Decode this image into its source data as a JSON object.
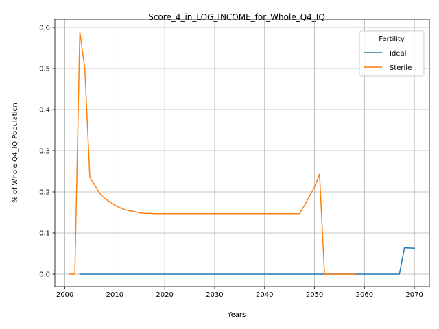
{
  "chart_data": {
    "type": "line",
    "title": "Score_4_in_LOG_INCOME_for_Whole_Q4_IQ",
    "xlabel": "Years",
    "ylabel": "% of Whole Q4_IQ Population",
    "xlim": [
      1998,
      2073
    ],
    "ylim": [
      -0.03,
      0.62
    ],
    "xticks": [
      2000,
      2010,
      2020,
      2030,
      2040,
      2050,
      2060,
      2070
    ],
    "yticks": [
      0.0,
      0.1,
      0.2,
      0.3,
      0.4,
      0.5,
      0.6
    ],
    "ytick_labels": [
      "0.0",
      "0.1",
      "0.2",
      "0.3",
      "0.4",
      "0.5",
      "0.6"
    ],
    "grid": true,
    "legend": {
      "title": "Fertility",
      "placement": "top-right"
    },
    "series": [
      {
        "name": "Ideal",
        "color": "#1f77b4",
        "x": [
          2003,
          2010,
          2020,
          2030,
          2040,
          2050,
          2060,
          2067,
          2068,
          2070
        ],
        "y": [
          0.0,
          0.0,
          0.0,
          0.0,
          0.0,
          0.0,
          0.0,
          0.0,
          0.064,
          0.063
        ]
      },
      {
        "name": "Sterile",
        "color": "#ff7f0e",
        "x": [
          2001,
          2002,
          2003,
          2004,
          2005,
          2006,
          2007,
          2008,
          2009,
          2010,
          2011,
          2012,
          2013,
          2014,
          2015,
          2016,
          2017,
          2018,
          2020,
          2025,
          2030,
          2035,
          2040,
          2045,
          2047,
          2048,
          2049,
          2050,
          2051,
          2052,
          2053,
          2055,
          2058
        ],
        "y": [
          0.0,
          0.0,
          0.589,
          0.5,
          0.236,
          0.216,
          0.196,
          0.184,
          0.176,
          0.168,
          0.162,
          0.157,
          0.154,
          0.152,
          0.149,
          0.148,
          0.148,
          0.147,
          0.147,
          0.147,
          0.147,
          0.147,
          0.147,
          0.147,
          0.147,
          0.168,
          0.19,
          0.212,
          0.243,
          0.0,
          0.0,
          0.0,
          0.0
        ]
      }
    ]
  }
}
